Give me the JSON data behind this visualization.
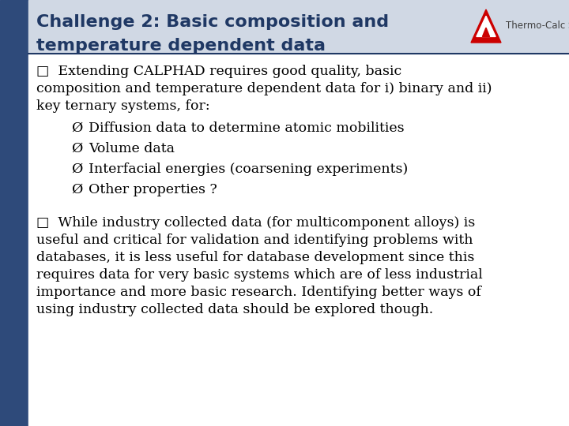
{
  "title_line1": "Challenge 2: Basic composition and",
  "title_line2": "temperature dependent data",
  "title_color": "#1F3864",
  "title_fontsize": 16,
  "logo_text": "Thermo-Calc Software",
  "logo_text_color": "#404040",
  "logo_triangle_outer": "#CC0000",
  "header_bg_color": "#D0D8E4",
  "left_bar_color": "#2E4A7A",
  "bg_color": "#FFFFFF",
  "separator_color": "#1F3864",
  "body_fontsize": 12.5,
  "body_color": "#000000",
  "para1_lines": [
    "□  Extending CALPHAD requires good quality, basic",
    "composition and temperature dependent data for i) binary and ii)",
    "key ternary systems, for:"
  ],
  "sub_bullets": [
    "Diffusion data to determine atomic mobilities",
    "Volume data",
    "Interfacial energies (coarsening experiments)",
    "Other properties ?"
  ],
  "para2_lines": [
    "□  While industry collected data (for multicomponent alloys) is",
    "useful and critical for validation and identifying problems with",
    "databases, it is less useful for database development since this",
    "requires data for very basic systems which are of less industrial",
    "importance and more basic research. Identifying better ways of",
    "using industry collected data should be explored though."
  ]
}
